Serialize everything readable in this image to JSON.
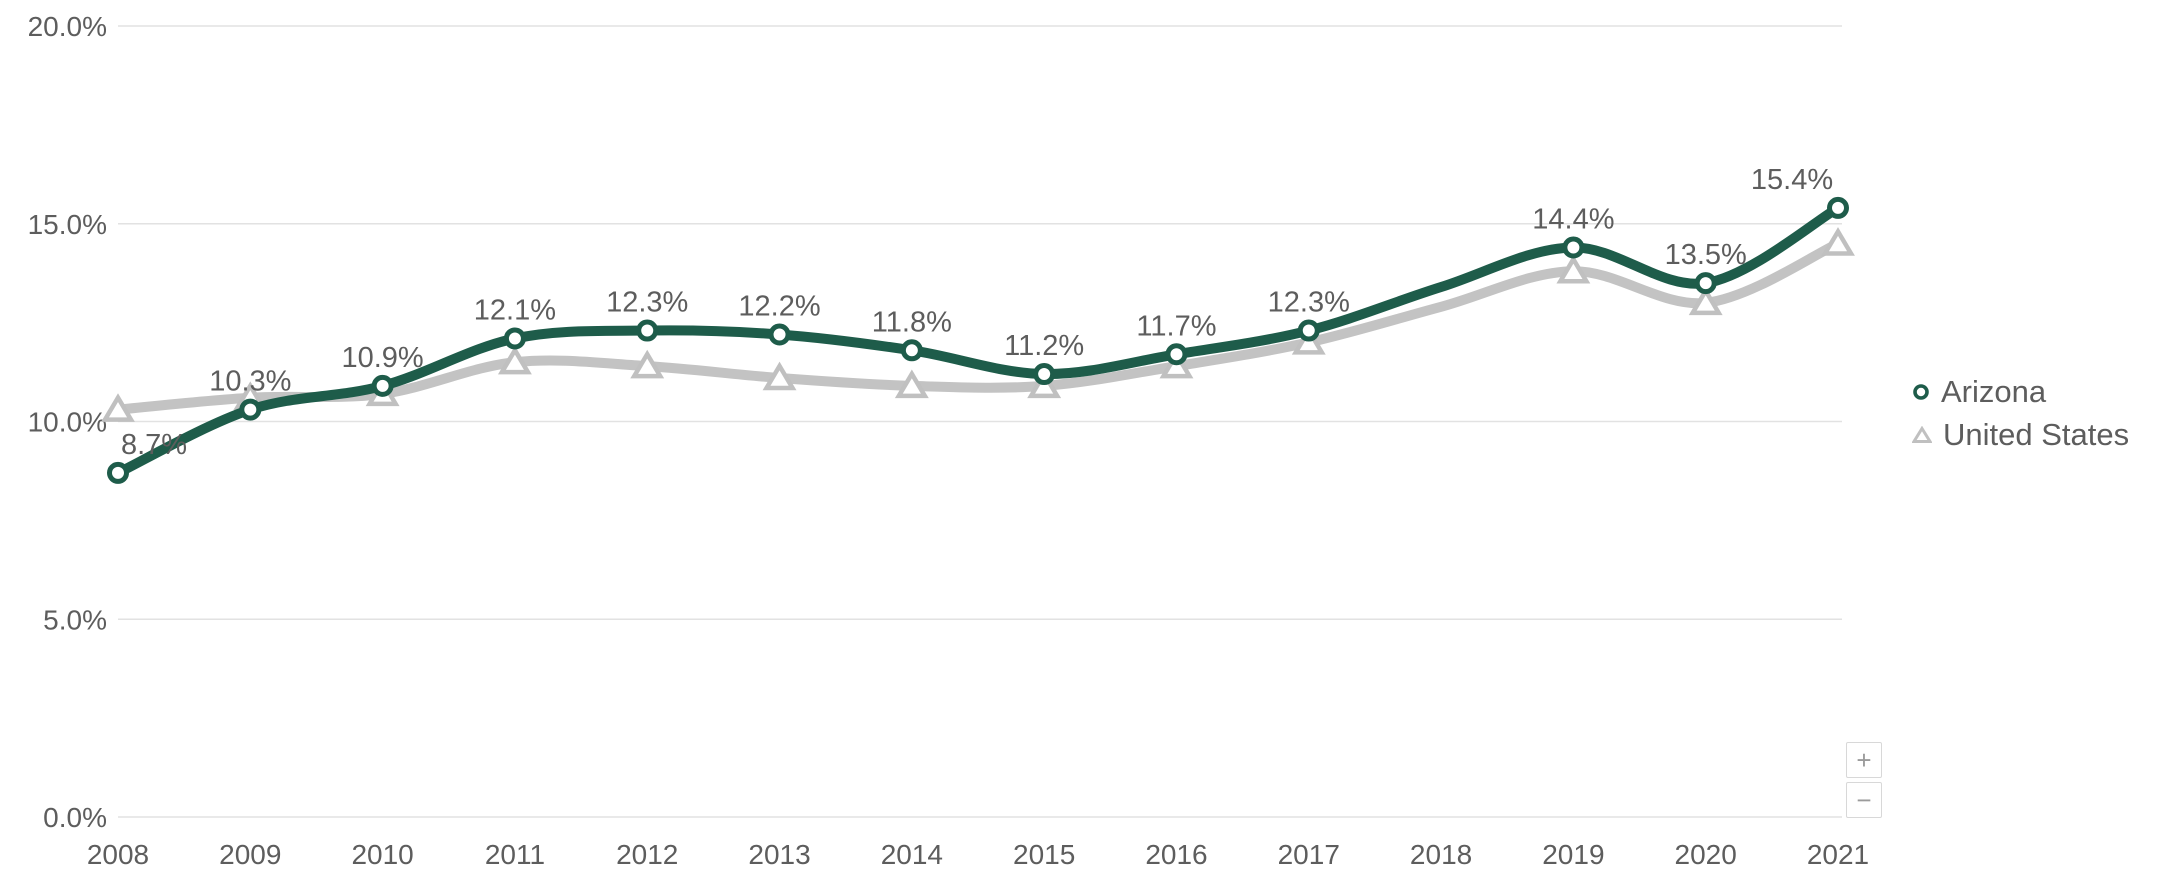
{
  "chart_data": {
    "type": "line",
    "categories": [
      "2008",
      "2009",
      "2010",
      "2011",
      "2012",
      "2013",
      "2014",
      "2015",
      "2016",
      "2017",
      "2018",
      "2019",
      "2020",
      "2021"
    ],
    "series": [
      {
        "name": "Arizona",
        "color": "#1e5c4a",
        "marker": "circle",
        "values": [
          8.7,
          10.3,
          10.9,
          12.1,
          12.3,
          12.2,
          11.8,
          11.2,
          11.7,
          12.3,
          13.4,
          14.4,
          13.5,
          15.4
        ],
        "data_labels": [
          "8.7%",
          "10.3%",
          "10.9%",
          "12.1%",
          "12.3%",
          "12.2%",
          "11.8%",
          "11.2%",
          "11.7%",
          "12.3%",
          "",
          "14.4%",
          "13.5%",
          "15.4%"
        ],
        "hidden_marker_indices": [
          10
        ]
      },
      {
        "name": "United States",
        "color": "#c3c3c3",
        "marker": "triangle",
        "values": [
          10.3,
          10.6,
          10.7,
          11.5,
          11.4,
          11.1,
          10.9,
          10.9,
          11.4,
          12.0,
          12.9,
          13.8,
          13.0,
          14.5
        ],
        "data_labels": [],
        "hidden_marker_indices": [
          10
        ]
      }
    ],
    "ylim": [
      0,
      20
    ],
    "y_ticks": [
      {
        "label": "0.0%",
        "value": 0
      },
      {
        "label": "5.0%",
        "value": 5
      },
      {
        "label": "10.0%",
        "value": 10
      },
      {
        "label": "15.0%",
        "value": 15
      },
      {
        "label": "20.0%",
        "value": 20
      }
    ],
    "grid": "horizontal",
    "legend_position": "right",
    "text_color": "#5d5d5d",
    "gridline_color": "#e2e2e2"
  },
  "legend": {
    "items": [
      {
        "label": "Arizona"
      },
      {
        "label": "United States"
      }
    ]
  },
  "controls": {
    "zoom_in_label": "+",
    "zoom_out_label": "−"
  }
}
